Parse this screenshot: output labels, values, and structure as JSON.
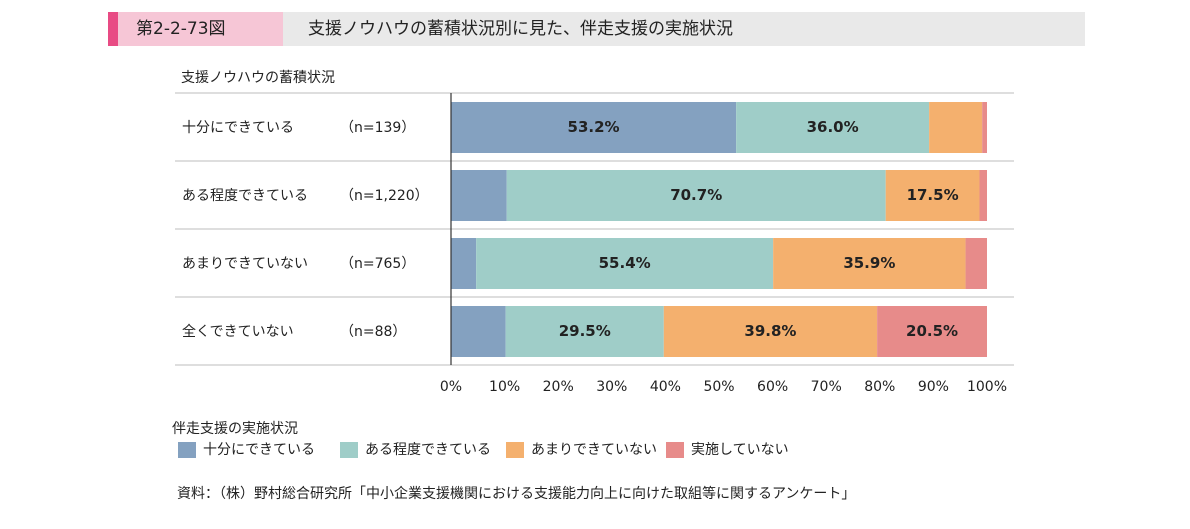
{
  "header": {
    "figure_number": "第2-2-73図",
    "title": "支援ノウハウの蓄積状況別に見た、伴走支援の実施状況"
  },
  "chart_data": {
    "type": "bar",
    "orientation": "horizontal",
    "stacked": true,
    "y_title": "支援ノウハウの蓄積状況",
    "categories": [
      "十分にできている",
      "ある程度できている",
      "あまりできていない",
      "全くできていない"
    ],
    "n_labels": [
      "（n=139）",
      "（n=1,220）",
      "（n=765）",
      "（n=88）"
    ],
    "series": [
      {
        "name": "十分にできている",
        "values": [
          53.2,
          10.4,
          4.7,
          10.2
        ],
        "labels": [
          "53.2%",
          "",
          "",
          ""
        ]
      },
      {
        "name": "ある程度できている",
        "values": [
          36.0,
          70.7,
          55.4,
          29.5
        ],
        "labels": [
          "36.0%",
          "70.7%",
          "55.4%",
          "29.5%"
        ]
      },
      {
        "name": "あまりできていない",
        "values": [
          9.9,
          17.5,
          35.9,
          39.8
        ],
        "labels": [
          "",
          "17.5%",
          "35.9%",
          "39.8%"
        ]
      },
      {
        "name": "実施していない",
        "values": [
          0.9,
          1.4,
          4.0,
          20.5
        ],
        "labels": [
          "",
          "",
          "",
          "20.5%"
        ]
      }
    ],
    "x_ticks": [
      "0%",
      "10%",
      "20%",
      "30%",
      "40%",
      "50%",
      "60%",
      "70%",
      "80%",
      "90%",
      "100%"
    ],
    "xlim": [
      0,
      100
    ],
    "legend_title": "伴走支援の実施状況",
    "legend_position": "bottom",
    "colors": [
      "#84a1c0",
      "#9fcdc8",
      "#f4b06e",
      "#e78b8a"
    ]
  },
  "source": "資料：（株）野村総合研究所「中小企業支援機関における支援能力向上に向けた取組等に関するアンケート」"
}
